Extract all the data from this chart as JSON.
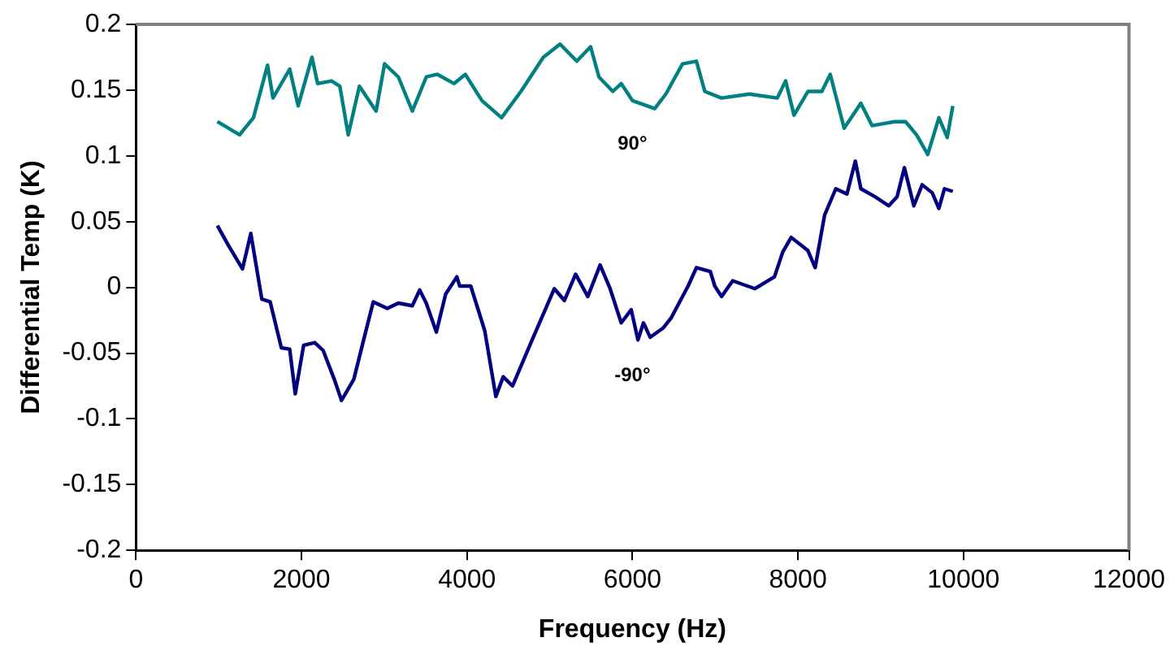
{
  "chart_data": {
    "type": "line",
    "xlabel": "Frequency (Hz)",
    "ylabel": "Differential Temp (K)",
    "xlim": [
      0,
      12000
    ],
    "xticks": [
      0,
      2000,
      4000,
      6000,
      8000,
      10000,
      12000
    ],
    "ylim": [
      -0.2,
      0.2
    ],
    "yticks": [
      -0.2,
      -0.15,
      -0.1,
      -0.05,
      0,
      0.05,
      0.1,
      0.15,
      0.2
    ],
    "grid": false,
    "legend": false,
    "marker": "none",
    "line_style": "solid",
    "series": [
      {
        "name": "90°",
        "color": "#008080",
        "x": [
          984,
          1252,
          1420,
          1590,
          1656,
          1858,
          1960,
          2127,
          2195,
          2363,
          2464,
          2565,
          2700,
          2902,
          3004,
          3171,
          3340,
          3508,
          3642,
          3845,
          3980,
          4181,
          4418,
          4652,
          4923,
          5125,
          5327,
          5494,
          5595,
          5763,
          5864,
          6000,
          6269,
          6403,
          6605,
          6773,
          6874,
          7076,
          7413,
          7750,
          7851,
          7952,
          8120,
          8289,
          8390,
          8558,
          8760,
          8895,
          9165,
          9300,
          9433,
          9568,
          9703,
          9804,
          9871
        ],
        "values": [
          0.126,
          0.116,
          0.129,
          0.169,
          0.144,
          0.166,
          0.138,
          0.175,
          0.155,
          0.157,
          0.153,
          0.116,
          0.153,
          0.134,
          0.17,
          0.16,
          0.134,
          0.16,
          0.162,
          0.155,
          0.162,
          0.142,
          0.129,
          0.149,
          0.175,
          0.185,
          0.172,
          0.183,
          0.16,
          0.149,
          0.155,
          0.142,
          0.136,
          0.147,
          0.17,
          0.172,
          0.149,
          0.144,
          0.147,
          0.144,
          0.157,
          0.131,
          0.149,
          0.149,
          0.162,
          0.121,
          0.14,
          0.123,
          0.126,
          0.126,
          0.116,
          0.101,
          0.129,
          0.114,
          0.138
        ]
      },
      {
        "name": "-90°",
        "color": "#000080",
        "x": [
          984,
          1117,
          1287,
          1388,
          1521,
          1622,
          1757,
          1858,
          1925,
          2026,
          2161,
          2262,
          2397,
          2484,
          2632,
          2767,
          2868,
          3037,
          3171,
          3340,
          3428,
          3508,
          3630,
          3743,
          3878,
          3912,
          4046,
          4215,
          4349,
          4438,
          4551,
          4787,
          5056,
          5177,
          5313,
          5460,
          5609,
          5730,
          5864,
          5985,
          6066,
          6133,
          6214,
          6369,
          6470,
          6672,
          6773,
          6941,
          6995,
          7076,
          7211,
          7480,
          7716,
          7817,
          7918,
          8120,
          8208,
          8322,
          8457,
          8592,
          8693,
          8760,
          8928,
          9097,
          9198,
          9286,
          9400,
          9501,
          9622,
          9703,
          9770,
          9871
        ],
        "values": [
          0.047,
          0.032,
          0.014,
          0.041,
          -0.009,
          -0.011,
          -0.046,
          -0.047,
          -0.081,
          -0.044,
          -0.042,
          -0.048,
          -0.07,
          -0.086,
          -0.07,
          -0.036,
          -0.011,
          -0.016,
          -0.012,
          -0.014,
          -0.002,
          -0.012,
          -0.034,
          -0.005,
          0.008,
          0.001,
          0.001,
          -0.033,
          -0.083,
          -0.068,
          -0.075,
          -0.04,
          -0.001,
          -0.01,
          0.01,
          -0.007,
          0.017,
          -0.001,
          -0.027,
          -0.017,
          -0.04,
          -0.027,
          -0.038,
          -0.031,
          -0.023,
          0.001,
          0.015,
          0.012,
          0.001,
          -0.007,
          0.005,
          -0.001,
          0.008,
          0.027,
          0.038,
          0.028,
          0.015,
          0.055,
          0.075,
          0.071,
          0.096,
          0.075,
          0.069,
          0.062,
          0.069,
          0.091,
          0.062,
          0.078,
          0.072,
          0.06,
          0.075,
          0.073
        ]
      }
    ]
  }
}
